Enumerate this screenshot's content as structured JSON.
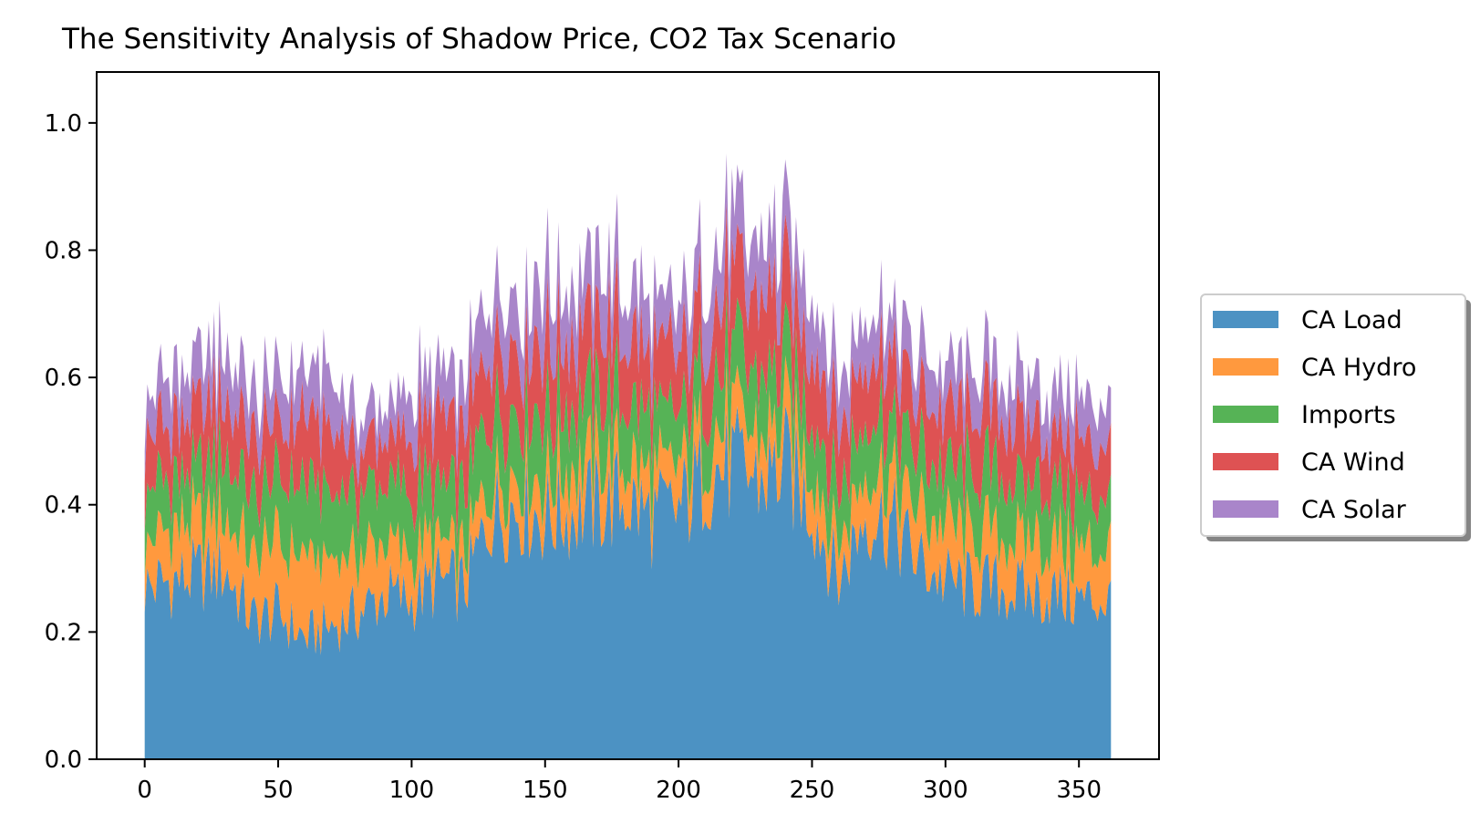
{
  "chart_data": {
    "type": "area",
    "stacked": true,
    "title": "The Sensitivity Analysis of Shadow Price, CO2 Tax Scenario",
    "xlabel": "",
    "ylabel": "",
    "xlim": [
      -18,
      380
    ],
    "ylim": [
      0,
      1.0
    ],
    "ylim_display": [
      0,
      1.08
    ],
    "xticks": [
      0,
      50,
      100,
      150,
      200,
      250,
      300,
      350
    ],
    "xtick_labels": [
      "0",
      "50",
      "100",
      "150",
      "200",
      "250",
      "300",
      "350"
    ],
    "yticks": [
      0.0,
      0.2,
      0.4,
      0.6,
      0.8,
      1.0
    ],
    "ytick_labels": [
      "0.0",
      "0.2",
      "0.4",
      "0.6",
      "0.8",
      "1.0"
    ],
    "grid": false,
    "legend_position": "right-outside",
    "x_step": 10,
    "x_last": 362,
    "series": [
      {
        "name": "CA Load",
        "color": "#1f77b4",
        "values": [
          0.27,
          0.28,
          0.29,
          0.3,
          0.22,
          0.23,
          0.19,
          0.21,
          0.23,
          0.26,
          0.25,
          0.28,
          0.27,
          0.39,
          0.4,
          0.38,
          0.39,
          0.4,
          0.41,
          0.38,
          0.39,
          0.45,
          0.46,
          0.44,
          0.46,
          0.4,
          0.28,
          0.39,
          0.37,
          0.31,
          0.28,
          0.27,
          0.27,
          0.26,
          0.26,
          0.25,
          0.25,
          0.25
        ]
      },
      {
        "name": "CA Hydro",
        "color": "#ff7f0e",
        "values": [
          0.07,
          0.08,
          0.08,
          0.09,
          0.1,
          0.11,
          0.12,
          0.1,
          0.09,
          0.08,
          0.07,
          0.06,
          0.05,
          0.06,
          0.06,
          0.06,
          0.07,
          0.07,
          0.06,
          0.06,
          0.06,
          0.06,
          0.07,
          0.06,
          0.07,
          0.07,
          0.06,
          0.07,
          0.07,
          0.08,
          0.08,
          0.08,
          0.08,
          0.09,
          0.08,
          0.08,
          0.08,
          0.08
        ]
      },
      {
        "name": "Imports",
        "color": "#2ca02c",
        "values": [
          0.08,
          0.08,
          0.09,
          0.09,
          0.1,
          0.1,
          0.11,
          0.1,
          0.1,
          0.09,
          0.1,
          0.09,
          0.1,
          0.1,
          0.09,
          0.1,
          0.1,
          0.1,
          0.1,
          0.09,
          0.08,
          0.09,
          0.1,
          0.09,
          0.1,
          0.09,
          0.09,
          0.09,
          0.09,
          0.09,
          0.09,
          0.09,
          0.09,
          0.09,
          0.09,
          0.08,
          0.08,
          0.08
        ]
      },
      {
        "name": "CA Wind",
        "color": "#d62728",
        "values": [
          0.09,
          0.09,
          0.09,
          0.09,
          0.09,
          0.09,
          0.1,
          0.1,
          0.07,
          0.07,
          0.09,
          0.1,
          0.1,
          0.11,
          0.1,
          0.11,
          0.11,
          0.11,
          0.1,
          0.1,
          0.09,
          0.11,
          0.12,
          0.11,
          0.12,
          0.11,
          0.1,
          0.1,
          0.1,
          0.09,
          0.09,
          0.09,
          0.1,
          0.09,
          0.09,
          0.09,
          0.09,
          0.08
        ]
      },
      {
        "name": "CA Solar",
        "color": "#9467bd",
        "values": [
          0.06,
          0.07,
          0.07,
          0.07,
          0.07,
          0.07,
          0.08,
          0.08,
          0.05,
          0.05,
          0.07,
          0.07,
          0.08,
          0.09,
          0.08,
          0.09,
          0.08,
          0.09,
          0.08,
          0.08,
          0.07,
          0.08,
          0.09,
          0.09,
          0.09,
          0.08,
          0.07,
          0.07,
          0.07,
          0.07,
          0.06,
          0.07,
          0.07,
          0.07,
          0.07,
          0.07,
          0.07,
          0.07
        ]
      }
    ]
  }
}
